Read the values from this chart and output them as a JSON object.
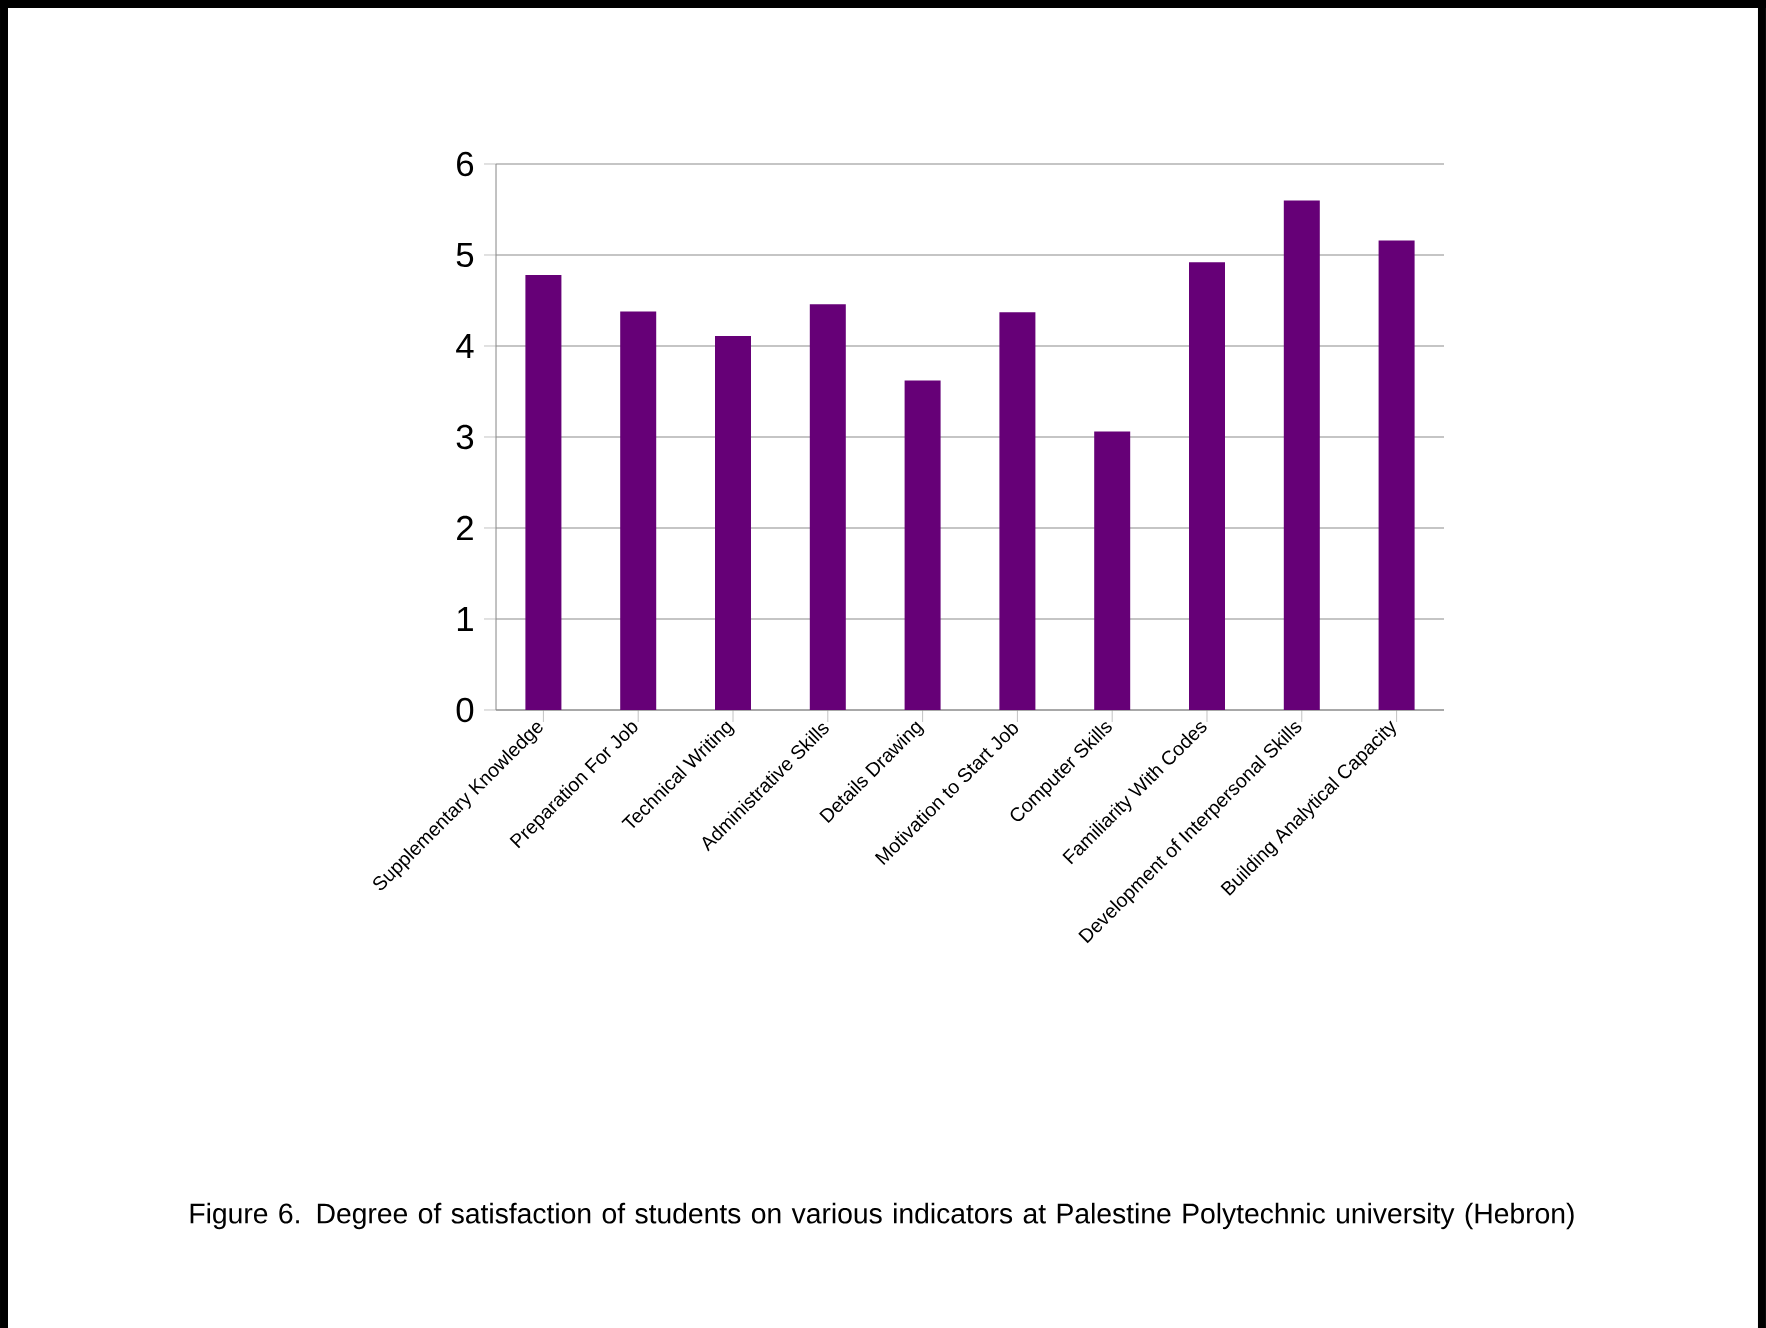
{
  "chart_data": {
    "type": "bar",
    "categories": [
      "Supplementary Knowledge",
      "Preparation For Job",
      "Technical Writing",
      "Administrative Skills",
      "Details Drawing",
      "Motivation to Start Job",
      "Computer Skills",
      "Familiarity With Codes",
      "Development of Interpersonal Skills",
      "Building Analytical Capacity"
    ],
    "values": [
      4.78,
      4.38,
      4.11,
      4.46,
      3.62,
      4.37,
      3.06,
      4.92,
      5.6,
      5.16
    ],
    "color": "#660077",
    "ylim": [
      0,
      6
    ],
    "yticks": [
      0,
      1,
      2,
      3,
      4,
      5,
      6
    ],
    "grid": "y",
    "annotations": [
      "Figure 6. Degree of satisfaction of students on various indicators at Palestine Polytechnic university (Hebron)"
    ]
  }
}
